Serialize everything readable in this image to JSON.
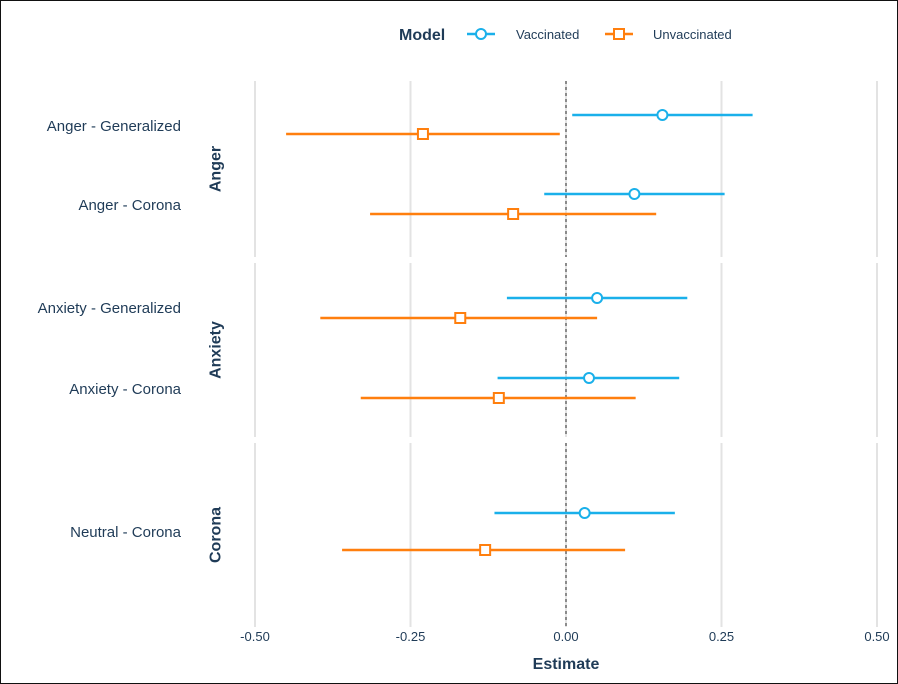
{
  "chart_data": {
    "type": "forest",
    "xlabel": "Estimate",
    "xlim": [
      -0.5,
      0.5
    ],
    "x_ticks": [
      -0.5,
      -0.25,
      0.0,
      0.25,
      0.5
    ],
    "x_tick_labels": [
      "-0.50",
      "-0.25",
      "0.00",
      "0.25",
      "0.50"
    ],
    "reference_line": 0,
    "grid": true,
    "legend": {
      "title": "Model",
      "position": "top",
      "entries": [
        {
          "name": "Vaccinated",
          "color": "#1ab0ea",
          "marker": "circle"
        },
        {
          "name": "Unvaccinated",
          "color": "#ff7f0e",
          "marker": "square"
        }
      ]
    },
    "panels": [
      {
        "label": "Anger",
        "rows": [
          {
            "label": "Anger - Generalized",
            "Vaccinated": {
              "estimate": 0.155,
              "lower": 0.01,
              "upper": 0.3
            },
            "Unvaccinated": {
              "estimate": -0.23,
              "lower": -0.45,
              "upper": -0.01
            }
          },
          {
            "label": "Anger - Corona",
            "Vaccinated": {
              "estimate": 0.11,
              "lower": -0.035,
              "upper": 0.255
            },
            "Unvaccinated": {
              "estimate": -0.085,
              "lower": -0.315,
              "upper": 0.145
            }
          }
        ]
      },
      {
        "label": "Anxiety",
        "rows": [
          {
            "label": "Anxiety - Generalized",
            "Vaccinated": {
              "estimate": 0.05,
              "lower": -0.095,
              "upper": 0.195
            },
            "Unvaccinated": {
              "estimate": -0.17,
              "lower": -0.395,
              "upper": 0.05
            }
          },
          {
            "label": "Anxiety - Corona",
            "Vaccinated": {
              "estimate": 0.037,
              "lower": -0.11,
              "upper": 0.182
            },
            "Unvaccinated": {
              "estimate": -0.108,
              "lower": -0.33,
              "upper": 0.112
            }
          }
        ]
      },
      {
        "label": "Corona",
        "rows": [
          {
            "label": "Neutral - Corona",
            "Vaccinated": {
              "estimate": 0.03,
              "lower": -0.115,
              "upper": 0.175
            },
            "Unvaccinated": {
              "estimate": -0.13,
              "lower": -0.36,
              "upper": 0.095
            }
          }
        ]
      }
    ]
  }
}
